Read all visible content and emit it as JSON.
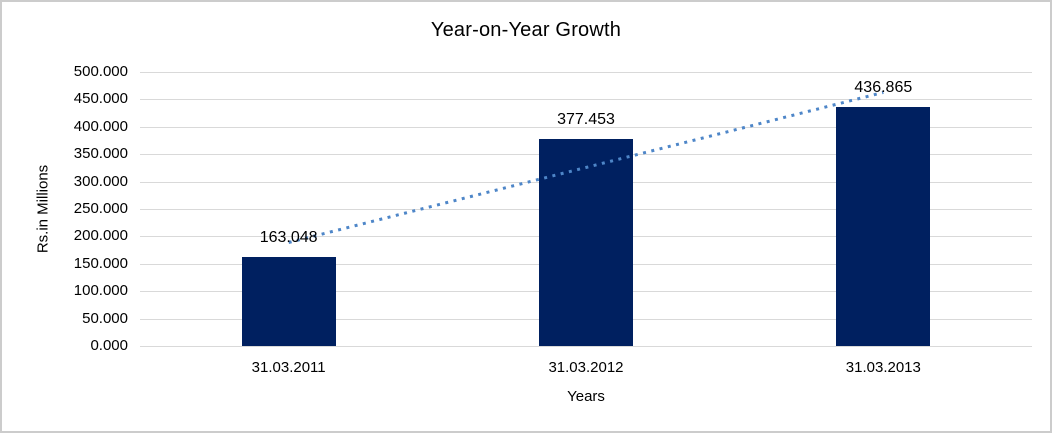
{
  "chart_data": {
    "type": "bar",
    "title": "Year-on-Year Growth",
    "categories": [
      "31.03.2011",
      "31.03.2012",
      "31.03.2013"
    ],
    "values": [
      163.048,
      377.453,
      436.865
    ],
    "data_labels": [
      "163.048",
      "377.453",
      "436.865"
    ],
    "xlabel": "Years",
    "ylabel": "Rs.in Millions",
    "ylim": [
      0,
      500
    ],
    "ytick_interval": 50,
    "ytick_labels": [
      "0.000",
      "50.000",
      "100.000",
      "150.000",
      "200.000",
      "250.000",
      "300.000",
      "350.000",
      "400.000",
      "450.000",
      "500.000"
    ],
    "grid": true,
    "legend_position": "none",
    "bar_color": "#002060",
    "gridline_color": "#d9d9d9",
    "trendline": {
      "type": "linear",
      "style": "dotted",
      "color": "#4e86c8"
    }
  }
}
